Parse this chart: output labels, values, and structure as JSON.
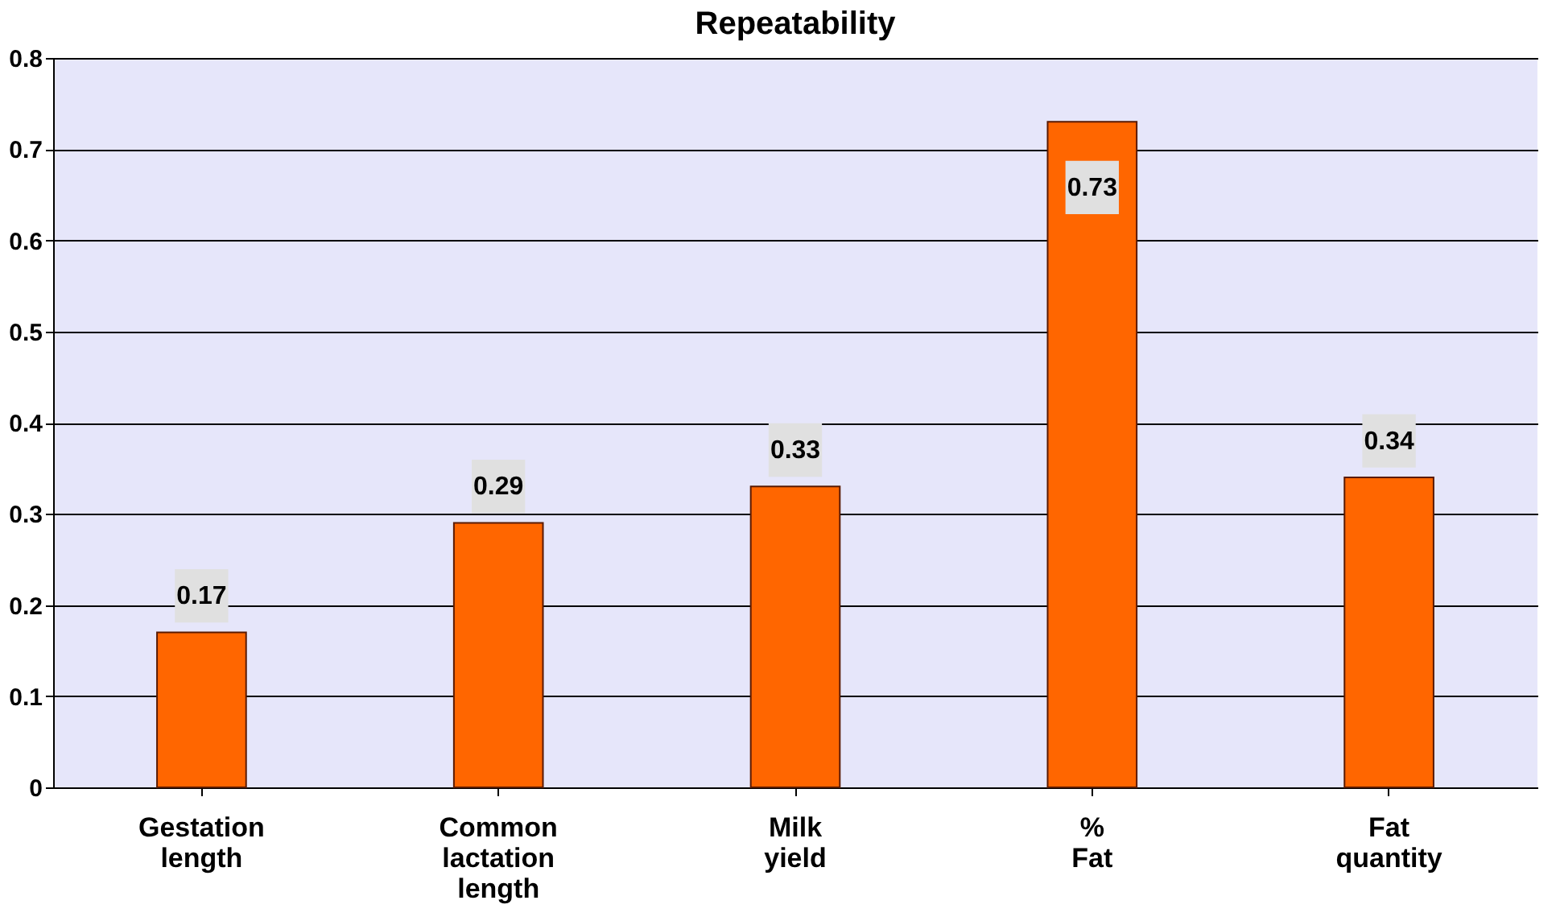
{
  "chart_data": {
    "type": "bar",
    "title": "Repeatability",
    "categories": [
      "Gestation length",
      "Common lactation length",
      "Milk yield",
      "% Fat",
      "Fat quantity"
    ],
    "values": [
      0.17,
      0.29,
      0.33,
      0.73,
      0.34
    ],
    "color": "#ff6600",
    "ylim": [
      0,
      0.8
    ],
    "yticks": [
      0,
      0.1,
      0.2,
      0.3,
      0.4,
      0.5,
      0.6,
      0.7,
      0.8
    ],
    "grid": "y",
    "data_labels": true
  }
}
